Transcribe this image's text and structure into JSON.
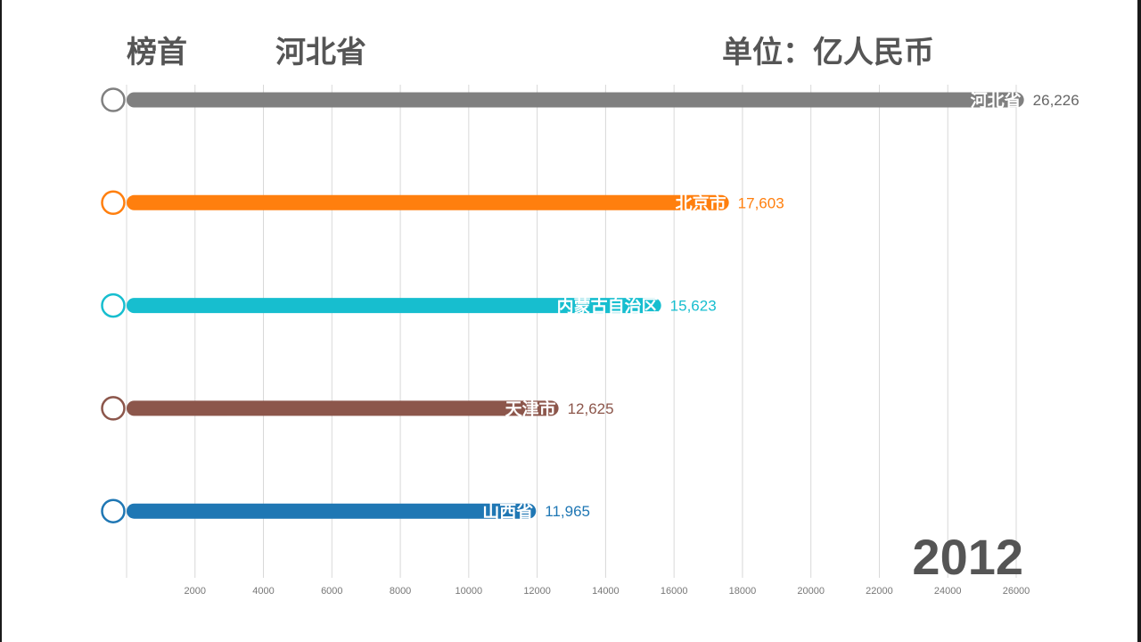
{
  "header": {
    "leader_label": "榜首",
    "leader_name": "河北省",
    "unit_label": "单位：亿人民币"
  },
  "year": "2012",
  "chart_data": {
    "type": "bar",
    "orientation": "horizontal",
    "title": "",
    "xlabel": "",
    "ylabel": "",
    "xlim": [
      0,
      26000
    ],
    "grid": true,
    "ticks": [
      2000,
      4000,
      6000,
      8000,
      10000,
      12000,
      14000,
      16000,
      18000,
      20000,
      22000,
      24000,
      26000
    ],
    "categories": [
      "河北省",
      "北京市",
      "内蒙古自治区",
      "天津市",
      "山西省"
    ],
    "values": [
      26226,
      17603,
      15623,
      12625,
      11965
    ],
    "value_labels": [
      "26,226",
      "17,603",
      "15,623",
      "12,625",
      "11,965"
    ],
    "colors": [
      "#808080",
      "#ff7f0e",
      "#17becf",
      "#8c564b",
      "#1f77b4"
    ],
    "value_label_colors": [
      "#666666",
      "#ff7f0e",
      "#17becf",
      "#8c564b",
      "#1f77b4"
    ]
  }
}
